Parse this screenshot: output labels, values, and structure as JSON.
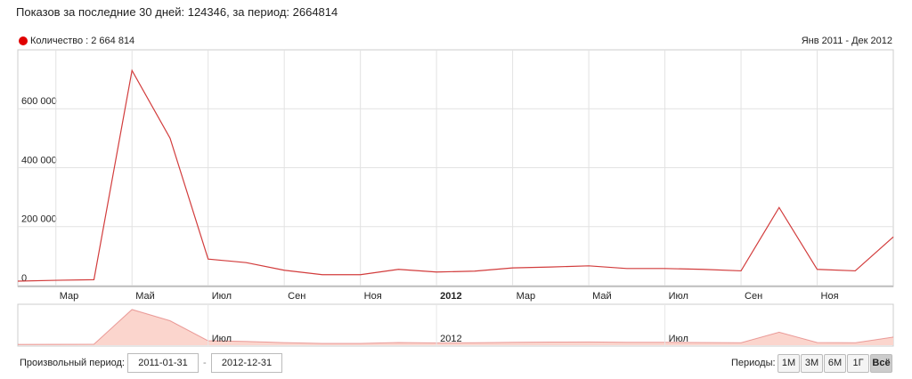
{
  "header": {
    "text": "Показов за последние 30 дней: 124346, за период: 2664814"
  },
  "chart_data": {
    "type": "line",
    "range_label": "Янв 2011 - Дек 2012",
    "series": [
      {
        "name": "Количество : 2 664 814",
        "color": "#d23c3c",
        "values": [
          15000,
          18000,
          20000,
          730000,
          500000,
          90000,
          78000,
          52000,
          37000,
          37000,
          55000,
          46000,
          49000,
          60000,
          63000,
          67000,
          58000,
          58000,
          55000,
          50000,
          265000,
          55000,
          50000,
          165000
        ]
      }
    ],
    "xlim": [
      0,
      23
    ],
    "xticks": [
      {
        "value": 1,
        "label": "Мар"
      },
      {
        "value": 3,
        "label": "Май"
      },
      {
        "value": 5,
        "label": "Июл"
      },
      {
        "value": 7,
        "label": "Сен"
      },
      {
        "value": 9,
        "label": "Ноя"
      },
      {
        "value": 11,
        "label": "2012"
      },
      {
        "value": 13,
        "label": "Мар"
      },
      {
        "value": 15,
        "label": "Май"
      },
      {
        "value": 17,
        "label": "Июл"
      },
      {
        "value": 19,
        "label": "Сен"
      },
      {
        "value": 21,
        "label": "Ноя"
      }
    ],
    "ylim": [
      0,
      800000
    ],
    "yticks": [
      0,
      {
        "value": 200000,
        "label": "200 000"
      },
      {
        "value": 400000,
        "label": "400 000"
      },
      {
        "value": 600000,
        "label": "600 000"
      }
    ],
    "grid": true,
    "navigator_fill": "#fbd5cd",
    "navigator_xticks": [
      {
        "value": 5,
        "label": "Июл"
      },
      {
        "value": 11,
        "label": "2012"
      },
      {
        "value": 17,
        "label": "Июл"
      }
    ]
  },
  "controls": {
    "custom_label": "Произвольный период:",
    "from": "2011-01-31",
    "separator": "-",
    "to": "2012-12-31",
    "periods_label": "Периоды:",
    "periods": [
      "1М",
      "3М",
      "6М",
      "1Г",
      "Всё"
    ],
    "active_period": 4
  }
}
